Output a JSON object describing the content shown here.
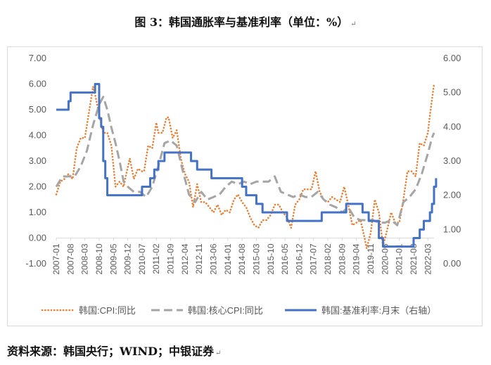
{
  "title": "图 3：韩国通胀率与基准利率（单位：%）",
  "source": "资料来源：韩国央行；WIND；中银证券",
  "chart_data": {
    "type": "line",
    "title": "图 3：韩国通胀率与基准利率（单位：%）",
    "left_axis": {
      "min": -1,
      "max": 7,
      "step": 1,
      "ticks": [
        "-1.00",
        "0.00",
        "1.00",
        "2.00",
        "3.00",
        "4.00",
        "5.00",
        "6.00",
        "7.00"
      ]
    },
    "right_axis": {
      "min": 0,
      "max": 6,
      "step": 1,
      "ticks": [
        "0.00",
        "1.00",
        "2.00",
        "3.00",
        "4.00",
        "5.00",
        "6.00"
      ]
    },
    "x_ticks": [
      "2007-01",
      "2007-08",
      "2008-03",
      "2008-10",
      "2009-05",
      "2009-12",
      "2010-07",
      "2011-02",
      "2011-09",
      "2012-04",
      "2012-11",
      "2013-06",
      "2014-01",
      "2014-08",
      "2015-03",
      "2015-10",
      "2016-05",
      "2016-12",
      "2017-07",
      "2018-02",
      "2018-09",
      "2019-04",
      "2019-11",
      "2020-06",
      "2021-01",
      "2021-08",
      "2022-03"
    ],
    "x_range": [
      "2007-01",
      "2022-06"
    ],
    "legend_position": "bottom",
    "grid": false,
    "series": [
      {
        "name": "韩国:CPI:同比",
        "axis": "left",
        "style": "dotted",
        "color": "#ED7D31",
        "points": [
          [
            "2007-01",
            1.7
          ],
          [
            "2007-03",
            2.2
          ],
          [
            "2007-05",
            2.3
          ],
          [
            "2007-07",
            2.5
          ],
          [
            "2007-09",
            2.3
          ],
          [
            "2007-11",
            3.5
          ],
          [
            "2008-01",
            3.9
          ],
          [
            "2008-03",
            3.9
          ],
          [
            "2008-05",
            4.9
          ],
          [
            "2008-07",
            5.9
          ],
          [
            "2008-08",
            5.6
          ],
          [
            "2008-10",
            4.8
          ],
          [
            "2008-12",
            4.1
          ],
          [
            "2009-02",
            4.1
          ],
          [
            "2009-04",
            3.6
          ],
          [
            "2009-06",
            2.0
          ],
          [
            "2009-08",
            2.2
          ],
          [
            "2009-10",
            2.0
          ],
          [
            "2009-11",
            2.4
          ],
          [
            "2010-01",
            3.1
          ],
          [
            "2010-03",
            2.3
          ],
          [
            "2010-05",
            2.7
          ],
          [
            "2010-07",
            2.6
          ],
          [
            "2010-08",
            2.6
          ],
          [
            "2010-10",
            3.6
          ],
          [
            "2010-12",
            3.5
          ],
          [
            "2011-02",
            4.5
          ],
          [
            "2011-03",
            4.1
          ],
          [
            "2011-05",
            4.1
          ],
          [
            "2011-07",
            4.7
          ],
          [
            "2011-08",
            4.7
          ],
          [
            "2011-10",
            3.9
          ],
          [
            "2011-12",
            4.2
          ],
          [
            "2012-02",
            3.1
          ],
          [
            "2012-04",
            2.5
          ],
          [
            "2012-06",
            2.2
          ],
          [
            "2012-08",
            1.2
          ],
          [
            "2012-10",
            2.1
          ],
          [
            "2012-12",
            1.4
          ],
          [
            "2013-02",
            1.4
          ],
          [
            "2013-04",
            1.2
          ],
          [
            "2013-06",
            1.0
          ],
          [
            "2013-08",
            1.3
          ],
          [
            "2013-10",
            0.9
          ],
          [
            "2013-12",
            1.1
          ],
          [
            "2014-02",
            1.0
          ],
          [
            "2014-04",
            1.5
          ],
          [
            "2014-06",
            1.7
          ],
          [
            "2014-08",
            1.4
          ],
          [
            "2014-10",
            1.2
          ],
          [
            "2014-12",
            0.8
          ],
          [
            "2015-02",
            0.5
          ],
          [
            "2015-04",
            0.4
          ],
          [
            "2015-06",
            0.7
          ],
          [
            "2015-08",
            0.7
          ],
          [
            "2015-10",
            0.9
          ],
          [
            "2015-12",
            1.3
          ],
          [
            "2016-02",
            1.3
          ],
          [
            "2016-04",
            1.0
          ],
          [
            "2016-06",
            0.8
          ],
          [
            "2016-08",
            0.4
          ],
          [
            "2016-10",
            1.3
          ],
          [
            "2016-12",
            1.5
          ],
          [
            "2017-02",
            1.9
          ],
          [
            "2017-04",
            1.9
          ],
          [
            "2017-06",
            1.9
          ],
          [
            "2017-08",
            2.6
          ],
          [
            "2017-10",
            1.8
          ],
          [
            "2017-12",
            1.5
          ],
          [
            "2018-02",
            1.4
          ],
          [
            "2018-04",
            1.6
          ],
          [
            "2018-06",
            1.5
          ],
          [
            "2018-08",
            1.4
          ],
          [
            "2018-10",
            2.0
          ],
          [
            "2018-12",
            1.3
          ],
          [
            "2019-02",
            0.5
          ],
          [
            "2019-04",
            0.6
          ],
          [
            "2019-06",
            0.7
          ],
          [
            "2019-08",
            0.0
          ],
          [
            "2019-09",
            -0.4
          ],
          [
            "2019-11",
            0.2
          ],
          [
            "2020-01",
            1.5
          ],
          [
            "2020-03",
            1.0
          ],
          [
            "2020-05",
            -0.3
          ],
          [
            "2020-07",
            0.3
          ],
          [
            "2020-09",
            1.0
          ],
          [
            "2020-11",
            0.6
          ],
          [
            "2021-01",
            0.6
          ],
          [
            "2021-03",
            1.5
          ],
          [
            "2021-05",
            2.6
          ],
          [
            "2021-07",
            2.6
          ],
          [
            "2021-09",
            2.4
          ],
          [
            "2021-11",
            3.7
          ],
          [
            "2022-01",
            3.6
          ],
          [
            "2022-03",
            4.1
          ],
          [
            "2022-04",
            4.8
          ],
          [
            "2022-05",
            5.4
          ],
          [
            "2022-06",
            6.0
          ]
        ]
      },
      {
        "name": "韩国:核心CPI:同比",
        "axis": "left",
        "style": "dashed",
        "color": "#A5A5A5",
        "points": [
          [
            "2007-01",
            2.0
          ],
          [
            "2007-04",
            2.4
          ],
          [
            "2007-07",
            2.4
          ],
          [
            "2007-10",
            2.4
          ],
          [
            "2008-01",
            2.8
          ],
          [
            "2008-04",
            3.4
          ],
          [
            "2008-07",
            4.4
          ],
          [
            "2008-10",
            5.2
          ],
          [
            "2008-12",
            5.5
          ],
          [
            "2009-02",
            5.0
          ],
          [
            "2009-04",
            4.3
          ],
          [
            "2009-06",
            3.7
          ],
          [
            "2009-08",
            3.0
          ],
          [
            "2009-10",
            2.2
          ],
          [
            "2009-12",
            2.0
          ],
          [
            "2010-03",
            1.8
          ],
          [
            "2010-06",
            1.8
          ],
          [
            "2010-09",
            1.6
          ],
          [
            "2010-12",
            2.0
          ],
          [
            "2011-03",
            2.8
          ],
          [
            "2011-06",
            3.7
          ],
          [
            "2011-09",
            3.8
          ],
          [
            "2011-12",
            3.6
          ],
          [
            "2012-03",
            2.6
          ],
          [
            "2012-06",
            1.7
          ],
          [
            "2012-09",
            1.4
          ],
          [
            "2012-12",
            1.8
          ],
          [
            "2013-03",
            1.5
          ],
          [
            "2013-06",
            1.6
          ],
          [
            "2013-09",
            1.7
          ],
          [
            "2013-12",
            2.0
          ],
          [
            "2014-03",
            2.2
          ],
          [
            "2014-06",
            2.1
          ],
          [
            "2014-09",
            2.2
          ],
          [
            "2014-12",
            2.1
          ],
          [
            "2015-03",
            2.2
          ],
          [
            "2015-06",
            2.2
          ],
          [
            "2015-09",
            2.2
          ],
          [
            "2015-12",
            2.4
          ],
          [
            "2016-03",
            1.8
          ],
          [
            "2016-06",
            1.7
          ],
          [
            "2016-09",
            1.6
          ],
          [
            "2016-12",
            1.7
          ],
          [
            "2017-03",
            1.6
          ],
          [
            "2017-06",
            1.6
          ],
          [
            "2017-09",
            1.8
          ],
          [
            "2017-12",
            1.5
          ],
          [
            "2018-03",
            1.3
          ],
          [
            "2018-06",
            1.2
          ],
          [
            "2018-09",
            1.0
          ],
          [
            "2018-12",
            1.2
          ],
          [
            "2019-03",
            0.8
          ],
          [
            "2019-06",
            0.7
          ],
          [
            "2019-09",
            0.7
          ],
          [
            "2019-12",
            0.7
          ],
          [
            "2020-03",
            0.6
          ],
          [
            "2020-06",
            0.6
          ],
          [
            "2020-09",
            0.7
          ],
          [
            "2020-12",
            0.5
          ],
          [
            "2021-03",
            1.4
          ],
          [
            "2021-06",
            1.6
          ],
          [
            "2021-09",
            1.9
          ],
          [
            "2021-12",
            2.5
          ],
          [
            "2022-03",
            3.3
          ],
          [
            "2022-05",
            3.9
          ],
          [
            "2022-06",
            4.1
          ]
        ]
      },
      {
        "name": "韩国:基准利率:月末（右轴）",
        "axis": "right",
        "style": "solid",
        "color": "#4472C4",
        "step": true,
        "points": [
          [
            "2007-01",
            4.5
          ],
          [
            "2007-07",
            4.75
          ],
          [
            "2007-08",
            5.0
          ],
          [
            "2008-08",
            5.25
          ],
          [
            "2008-10",
            4.25
          ],
          [
            "2008-11",
            4.0
          ],
          [
            "2008-12",
            3.0
          ],
          [
            "2009-01",
            2.5
          ],
          [
            "2009-02",
            2.0
          ],
          [
            "2010-07",
            2.25
          ],
          [
            "2010-11",
            2.5
          ],
          [
            "2011-01",
            2.75
          ],
          [
            "2011-03",
            3.0
          ],
          [
            "2011-06",
            3.25
          ],
          [
            "2012-07",
            3.0
          ],
          [
            "2012-10",
            2.75
          ],
          [
            "2013-05",
            2.5
          ],
          [
            "2014-08",
            2.25
          ],
          [
            "2014-10",
            2.0
          ],
          [
            "2015-03",
            1.75
          ],
          [
            "2015-06",
            1.5
          ],
          [
            "2016-06",
            1.25
          ],
          [
            "2017-11",
            1.5
          ],
          [
            "2018-11",
            1.75
          ],
          [
            "2019-07",
            1.5
          ],
          [
            "2019-10",
            1.25
          ],
          [
            "2020-03",
            0.75
          ],
          [
            "2020-05",
            0.5
          ],
          [
            "2021-08",
            0.75
          ],
          [
            "2021-11",
            1.0
          ],
          [
            "2022-01",
            1.25
          ],
          [
            "2022-04",
            1.5
          ],
          [
            "2022-05",
            1.75
          ],
          [
            "2022-06",
            2.25
          ],
          [
            "2022-07",
            2.5
          ]
        ]
      }
    ]
  }
}
